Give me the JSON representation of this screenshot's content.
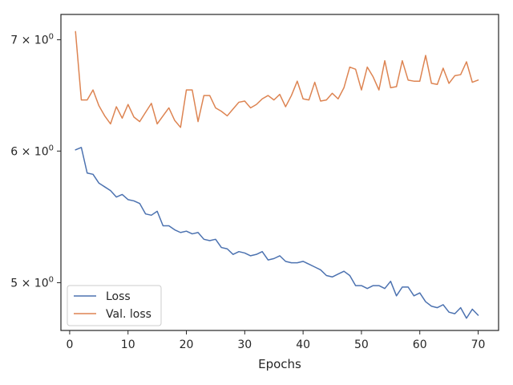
{
  "chart_data": {
    "type": "line",
    "title": "",
    "xlabel": "Epochs",
    "ylabel": "",
    "yscale": "log",
    "xlim": [
      -1.5,
      73.5
    ],
    "ylim": [
      4.68,
      7.25
    ],
    "grid": false,
    "legend_position": "lower-left",
    "x_ticks": [
      0,
      10,
      20,
      30,
      40,
      50,
      60,
      70
    ],
    "x_tick_labels": [
      "0",
      "10",
      "20",
      "30",
      "40",
      "50",
      "60",
      "70"
    ],
    "y_ticks": [
      5,
      6,
      7
    ],
    "y_tick_labels": [
      "5 × 10^0",
      "6 × 10^0",
      "7 × 10^0"
    ],
    "x": [
      1,
      2,
      3,
      4,
      5,
      6,
      7,
      8,
      9,
      10,
      11,
      12,
      13,
      14,
      15,
      16,
      17,
      18,
      19,
      20,
      21,
      22,
      23,
      24,
      25,
      26,
      27,
      28,
      29,
      30,
      31,
      32,
      33,
      34,
      35,
      36,
      37,
      38,
      39,
      40,
      41,
      42,
      43,
      44,
      45,
      46,
      47,
      48,
      49,
      50,
      51,
      52,
      53,
      54,
      55,
      56,
      57,
      58,
      59,
      60,
      61,
      62,
      63,
      64,
      65,
      66,
      67,
      68,
      69,
      70
    ],
    "series": [
      {
        "name": "Loss",
        "color": "#4c72b0",
        "values": [
          6.01,
          6.03,
          5.82,
          5.81,
          5.74,
          5.71,
          5.68,
          5.63,
          5.65,
          5.61,
          5.6,
          5.58,
          5.5,
          5.49,
          5.52,
          5.41,
          5.41,
          5.38,
          5.36,
          5.37,
          5.35,
          5.36,
          5.31,
          5.3,
          5.31,
          5.25,
          5.24,
          5.2,
          5.22,
          5.21,
          5.19,
          5.2,
          5.22,
          5.16,
          5.17,
          5.19,
          5.15,
          5.14,
          5.14,
          5.15,
          5.13,
          5.11,
          5.09,
          5.05,
          5.04,
          5.06,
          5.08,
          5.05,
          4.98,
          4.98,
          4.96,
          4.98,
          4.98,
          4.96,
          5.01,
          4.91,
          4.97,
          4.97,
          4.91,
          4.93,
          4.87,
          4.84,
          4.83,
          4.85,
          4.8,
          4.79,
          4.83,
          4.76,
          4.82,
          4.78
        ]
      },
      {
        "name": "Val. loss",
        "color": "#dd8452",
        "values": [
          7.08,
          6.44,
          6.44,
          6.53,
          6.39,
          6.3,
          6.23,
          6.38,
          6.28,
          6.4,
          6.29,
          6.25,
          6.33,
          6.41,
          6.23,
          6.3,
          6.37,
          6.26,
          6.2,
          6.53,
          6.53,
          6.25,
          6.48,
          6.48,
          6.37,
          6.34,
          6.3,
          6.36,
          6.42,
          6.43,
          6.37,
          6.4,
          6.45,
          6.48,
          6.44,
          6.49,
          6.38,
          6.48,
          6.61,
          6.45,
          6.44,
          6.6,
          6.43,
          6.44,
          6.5,
          6.45,
          6.55,
          6.74,
          6.72,
          6.53,
          6.74,
          6.65,
          6.53,
          6.8,
          6.55,
          6.56,
          6.8,
          6.62,
          6.61,
          6.61,
          6.85,
          6.59,
          6.58,
          6.73,
          6.59,
          6.66,
          6.67,
          6.79,
          6.6,
          6.62
        ]
      }
    ]
  }
}
